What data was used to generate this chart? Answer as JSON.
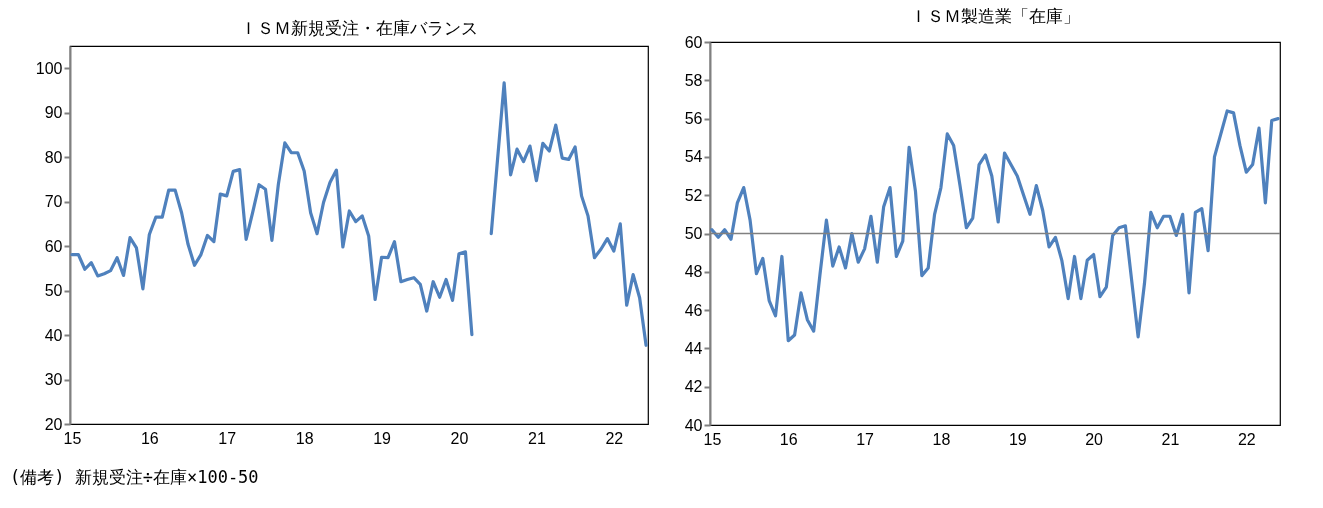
{
  "chart_data": [
    {
      "type": "line",
      "title": "ＩＳＭ新規受注・在庫バランス",
      "annotations": [
        "(備考) 新規受注÷在庫×100-50"
      ],
      "categories": [
        "15",
        null,
        null,
        null,
        null,
        null,
        null,
        null,
        null,
        null,
        null,
        null,
        "16",
        null,
        null,
        null,
        null,
        null,
        null,
        null,
        null,
        null,
        null,
        null,
        "17",
        null,
        null,
        null,
        null,
        null,
        null,
        null,
        null,
        null,
        null,
        null,
        "18",
        null,
        null,
        null,
        null,
        null,
        null,
        null,
        null,
        null,
        null,
        null,
        "19",
        null,
        null,
        null,
        null,
        null,
        null,
        null,
        null,
        null,
        null,
        null,
        "20",
        null,
        null,
        null,
        null,
        null,
        null,
        null,
        null,
        null,
        null,
        null,
        "21",
        null,
        null,
        null,
        null,
        null,
        null,
        null,
        null,
        null,
        null,
        null,
        "22",
        null,
        null,
        null,
        null,
        null
      ],
      "series": [
        {
          "color": "#4f81bd",
          "values": [
            58.1,
            58.1,
            54.8,
            56.3,
            53.3,
            53.8,
            54.5,
            57.4,
            53.4,
            61.9,
            59.6,
            50.4,
            62.6,
            66.5,
            66.5,
            72.6,
            72.6,
            67.5,
            60.4,
            55.7,
            58.1,
            62.4,
            61,
            71.7,
            71.3,
            76.8,
            77.2,
            61.5,
            67.5,
            73.8,
            72.8,
            61.3,
            73.9,
            83.2,
            81,
            81,
            76.9,
            67.5,
            62.8,
            69.8,
            74.3,
            77.1,
            59.8,
            67.9,
            65.5,
            66.8,
            62.3,
            48,
            57.5,
            57.4,
            61,
            52,
            52.5,
            52.9,
            51.4,
            45.4,
            52,
            48.5,
            52.5,
            47.8,
            58.3,
            58.7,
            40.1,
            null,
            null,
            62.8,
            79.9,
            96.7,
            76,
            81.8,
            79,
            82.5,
            74.7,
            83.1,
            81.4,
            87.2,
            79.8,
            79.5,
            82.3,
            71.3,
            66.8,
            57.4,
            59.3,
            61.7,
            58.9,
            65,
            46.7,
            53.6,
            48.4,
            37.7
          ]
        }
      ],
      "ylim": [
        20,
        105
      ],
      "yticks": [
        20,
        30,
        40,
        50,
        60,
        70,
        80,
        90,
        100
      ],
      "grid": false
    },
    {
      "type": "line",
      "title": "ＩＳＭ製造業「在庫」",
      "categories": [
        "15",
        null,
        null,
        null,
        null,
        null,
        null,
        null,
        null,
        null,
        null,
        null,
        "16",
        null,
        null,
        null,
        null,
        null,
        null,
        null,
        null,
        null,
        null,
        null,
        "17",
        null,
        null,
        null,
        null,
        null,
        null,
        null,
        null,
        null,
        null,
        null,
        "18",
        null,
        null,
        null,
        null,
        null,
        null,
        null,
        null,
        null,
        null,
        null,
        "19",
        null,
        null,
        null,
        null,
        null,
        null,
        null,
        null,
        null,
        null,
        null,
        "20",
        null,
        null,
        null,
        null,
        null,
        null,
        null,
        null,
        null,
        null,
        null,
        "21",
        null,
        null,
        null,
        null,
        null,
        null,
        null,
        null,
        null,
        null,
        null,
        "22",
        null,
        null,
        null,
        null,
        null
      ],
      "series": [
        {
          "color": "#4f81bd",
          "values": [
            50.2,
            49.8,
            50.2,
            49.7,
            51.6,
            52.4,
            50.7,
            47.9,
            48.7,
            46.5,
            45.7,
            48.8,
            44.4,
            44.7,
            46.9,
            45.5,
            44.9,
            47.9,
            50.7,
            48.3,
            49.3,
            48.2,
            50,
            48.5,
            49.2,
            50.9,
            48.5,
            51.4,
            52.4,
            48.8,
            49.6,
            54.5,
            52.2,
            47.8,
            48.2,
            51,
            52.4,
            55.2,
            54.6,
            52.5,
            50.3,
            50.8,
            53.6,
            54.1,
            53,
            50.6,
            54.2,
            53.6,
            53,
            52,
            51,
            52.5,
            51.2,
            49.3,
            49.8,
            48.6,
            46.6,
            48.8,
            46.6,
            48.6,
            48.9,
            46.7,
            47.2,
            49.9,
            50.3,
            50.4,
            47.5,
            44.6,
            47.4,
            51.1,
            50.3,
            50.9,
            50.9,
            49.9,
            51,
            46.9,
            51.1,
            51.3,
            49.1,
            54,
            55.2,
            56.4,
            56.3,
            54.6,
            53.2,
            53.6,
            55.5,
            51.6,
            55.9,
            56
          ]
        }
      ],
      "ylim": [
        40,
        60
      ],
      "yticks": [
        40,
        42,
        44,
        46,
        48,
        50,
        52,
        54,
        56,
        58,
        60
      ],
      "grid": false,
      "ref_lines": [
        {
          "axis": "y",
          "value": 50,
          "color": "#808080"
        }
      ]
    }
  ]
}
